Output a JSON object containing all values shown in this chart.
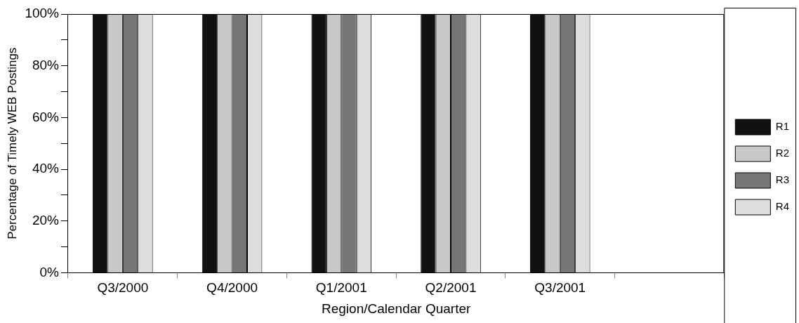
{
  "chart_data": {
    "type": "bar",
    "xlabel": "Region/Calendar Quarter",
    "ylabel": "Percentage of Timely WEB Postings",
    "categories": [
      "Q3/2000",
      "Q4/2000",
      "Q1/2001",
      "Q2/2001",
      "Q3/2001",
      null
    ],
    "series": [
      {
        "name": "R1",
        "color": "#111111",
        "values": [
          100,
          100,
          100,
          100,
          100,
          null
        ]
      },
      {
        "name": "R2",
        "color": "#c8c8c8",
        "values": [
          100,
          100,
          100,
          100,
          100,
          null
        ]
      },
      {
        "name": "R3",
        "color": "#777777",
        "values": [
          100,
          100,
          100,
          100,
          100,
          null
        ]
      },
      {
        "name": "R4",
        "color": "#dddddd",
        "values": [
          100,
          100,
          100,
          100,
          100,
          null
        ]
      }
    ],
    "ylim": [
      0,
      100
    ],
    "yticks": [
      {
        "value": 0,
        "label": "0%"
      },
      {
        "value": 10,
        "label": null
      },
      {
        "value": 20,
        "label": "20%"
      },
      {
        "value": 30,
        "label": null
      },
      {
        "value": 40,
        "label": "40%"
      },
      {
        "value": 50,
        "label": null
      },
      {
        "value": 60,
        "label": "60%"
      },
      {
        "value": 70,
        "label": null
      },
      {
        "value": 80,
        "label": "80%"
      },
      {
        "value": 90,
        "label": null
      },
      {
        "value": 100,
        "label": "100%"
      }
    ],
    "grid": false,
    "legend": "right"
  }
}
